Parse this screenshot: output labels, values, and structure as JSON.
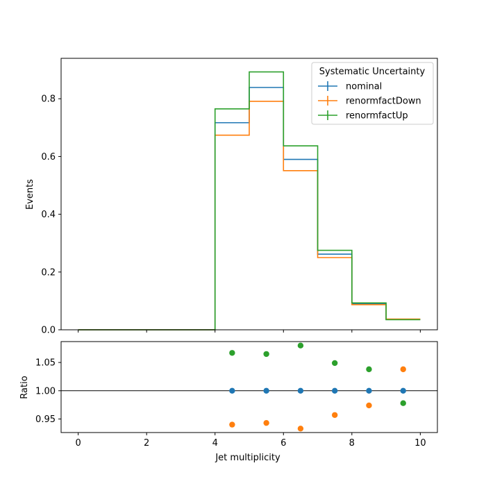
{
  "chart_data": [
    {
      "type": "step",
      "title": "",
      "xlabel": "",
      "ylabel": "Events",
      "xlim": [
        -0.5,
        10.5
      ],
      "ylim": [
        0,
        0.94
      ],
      "yticks": [
        0.0,
        0.2,
        0.4,
        0.6,
        0.8
      ],
      "ytick_labels": [
        "0.0",
        "0.2",
        "0.4",
        "0.6",
        "0.8"
      ],
      "bin_edges": [
        0,
        1,
        2,
        3,
        4,
        5,
        6,
        7,
        8,
        9,
        10
      ],
      "legend": {
        "title": "Systematic Uncertainty",
        "placement": "top-right"
      },
      "series": [
        {
          "name": "nominal",
          "color": "#1f77b4",
          "values": [
            0,
            0,
            0,
            0,
            0.717,
            0.839,
            0.59,
            0.262,
            0.09,
            0.036
          ]
        },
        {
          "name": "renormfactDown",
          "color": "#ff7f0e",
          "values": [
            0,
            0,
            0,
            0,
            0.674,
            0.791,
            0.551,
            0.25,
            0.087,
            0.037
          ]
        },
        {
          "name": "renormfactUp",
          "color": "#2ca02c",
          "values": [
            0,
            0,
            0,
            0,
            0.765,
            0.893,
            0.637,
            0.275,
            0.093,
            0.035
          ]
        }
      ]
    },
    {
      "type": "scatter",
      "xlabel": "Jet multiplicity",
      "ylabel": "Ratio",
      "xlim": [
        -0.5,
        10.5
      ],
      "ylim": [
        0.926,
        1.087
      ],
      "reference_line": 1.0,
      "xticks": [
        0,
        2,
        4,
        6,
        8,
        10
      ],
      "xtick_labels": [
        "0",
        "2",
        "4",
        "6",
        "8",
        "10"
      ],
      "yticks": [
        0.95,
        1.0,
        1.05
      ],
      "ytick_labels": [
        "0.95",
        "1.00",
        "1.05"
      ],
      "x": [
        4.5,
        5.5,
        6.5,
        7.5,
        8.5,
        9.5
      ],
      "series": [
        {
          "name": "nominal",
          "color": "#1f77b4",
          "values": [
            1.0,
            1.0,
            1.0,
            1.0,
            1.0,
            1.0
          ]
        },
        {
          "name": "renormfactDown",
          "color": "#ff7f0e",
          "values": [
            0.94,
            0.943,
            0.933,
            0.957,
            0.974,
            1.038
          ]
        },
        {
          "name": "renormfactUp",
          "color": "#2ca02c",
          "values": [
            1.067,
            1.065,
            1.08,
            1.049,
            1.038,
            0.978
          ]
        }
      ]
    }
  ]
}
